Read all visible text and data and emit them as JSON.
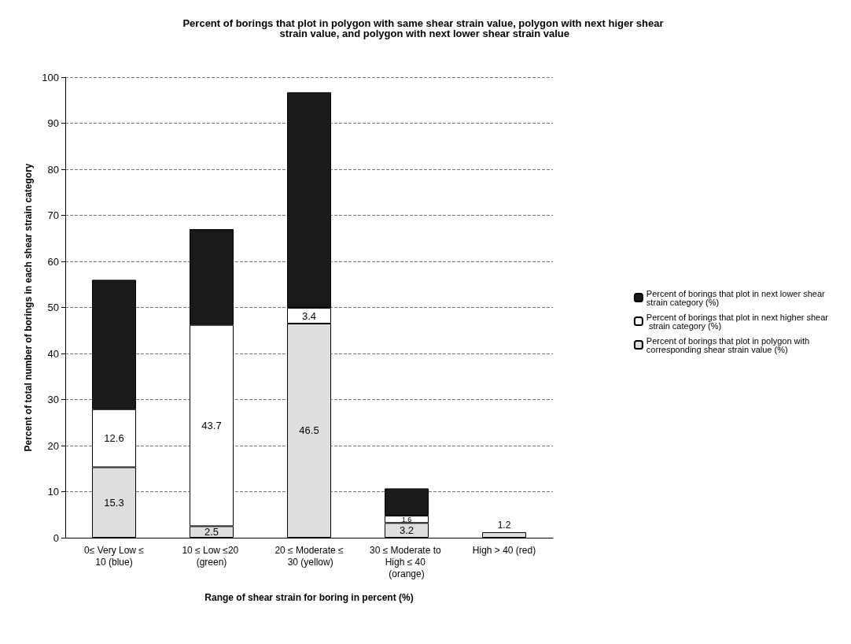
{
  "chart_data": {
    "type": "bar",
    "stacked": true,
    "title": "Percent of borings that plot in polygon with same shear strain value, polygon with next higer shear strain value, and polygon with next lower shear strain value",
    "xlabel": "Range of shear strain for boring in percent (%)",
    "ylabel": "Percent of total number of borings in each shear strain category",
    "categories": [
      "0≤ Very Low ≤10 (blue)",
      "10 ≤ Low ≤20 (green)",
      "20 ≤ Moderate ≤ 30 (yellow)",
      "30 ≤ Moderate to High ≤ 40 (orange)",
      "High > 40 (red)"
    ],
    "series": [
      {
        "name": "Percent of borings that plot in polygon with corresponding shear strain value (%)",
        "color": "#dedede",
        "values": [
          15.3,
          2.5,
          46.5,
          3.2,
          1.2
        ],
        "value_labels": [
          "15.3",
          "2.5",
          "46.5",
          "3.2",
          "1.2"
        ]
      },
      {
        "name": "Percent of borings that plot in next higher shear strain category (%)",
        "color": "#ffffff",
        "values": [
          12.6,
          43.7,
          3.4,
          1.6,
          null
        ],
        "value_labels": [
          "12.6",
          "43.7",
          "3.4",
          "1.6",
          null
        ]
      },
      {
        "name": "Percent of borings that plot in next lower shear strain category (%)",
        "color": "#1a1a1a",
        "values": [
          28.1,
          20.8,
          46.8,
          5.9,
          null
        ]
      }
    ],
    "ylim": [
      0,
      100
    ],
    "yticks": [
      0,
      10,
      20,
      30,
      40,
      50,
      60,
      70,
      80,
      90,
      100
    ],
    "grid": "y",
    "legend": "right"
  }
}
